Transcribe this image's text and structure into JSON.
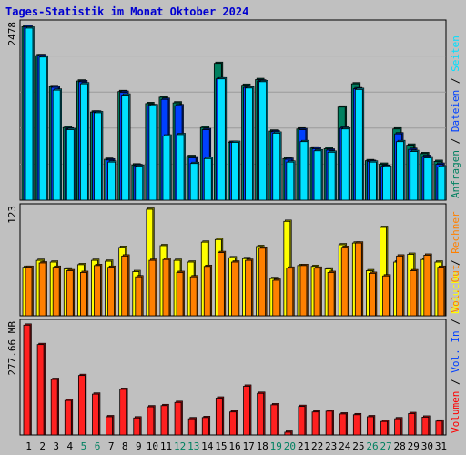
{
  "title": "Tages-Statistik im Monat Oktober 2024",
  "colors": {
    "background": "#c0c0c0",
    "panel_border": "#000000",
    "grid": "#9a9a9a",
    "title": "#0000d0",
    "anfragen": "#008060",
    "dateien": "#0040ff",
    "seiten": "#00e0ff",
    "besuche": "#ffff00",
    "rechner": "#ff8000",
    "vol_in": "#ff2020",
    "vol_out": "#ff8000",
    "vol": "#ff0000",
    "day_weekday": "#000000",
    "day_weekend": "#008060"
  },
  "chart_data": [
    {
      "type": "bar",
      "panel": "top",
      "ymax_label": "2478",
      "ymax": 2478,
      "right_axis_labels": [
        {
          "text": "Anfragen",
          "color": "#008060"
        },
        {
          "text": " / ",
          "color": "#000000"
        },
        {
          "text": "Dateien",
          "color": "#0040ff"
        },
        {
          "text": " / ",
          "color": "#000000"
        },
        {
          "text": "Seiten",
          "color": "#00e0ff"
        }
      ],
      "categories": [
        "1",
        "2",
        "3",
        "4",
        "5",
        "6",
        "7",
        "8",
        "9",
        "10",
        "11",
        "12",
        "13",
        "14",
        "15",
        "16",
        "17",
        "18",
        "19",
        "20",
        "21",
        "22",
        "23",
        "24",
        "25",
        "26",
        "27",
        "28",
        "29",
        "30",
        "31"
      ],
      "series": [
        {
          "name": "Anfragen",
          "color": "#008060",
          "values": [
            2460,
            2050,
            1610,
            1030,
            1690,
            1250,
            580,
            1540,
            500,
            1370,
            1460,
            1380,
            620,
            1030,
            1940,
            820,
            1630,
            1710,
            980,
            590,
            1010,
            740,
            730,
            1320,
            1650,
            560,
            510,
            1010,
            780,
            660,
            550
          ]
        },
        {
          "name": "Dateien",
          "color": "#0040ff",
          "values": [
            2460,
            2050,
            1600,
            1010,
            1680,
            1250,
            570,
            1530,
            490,
            1340,
            1430,
            1340,
            600,
            1000,
            1720,
            820,
            1600,
            1690,
            970,
            580,
            1000,
            730,
            710,
            1020,
            1580,
            550,
            480,
            940,
            720,
            620,
            510
          ]
        },
        {
          "name": "Seiten",
          "color": "#00e0ff",
          "values": [
            2440,
            2030,
            1560,
            1000,
            1650,
            1240,
            540,
            1490,
            480,
            1340,
            910,
            930,
            520,
            590,
            1720,
            820,
            1590,
            1680,
            950,
            540,
            830,
            700,
            680,
            1010,
            1570,
            540,
            470,
            830,
            690,
            600,
            470
          ]
        }
      ]
    },
    {
      "type": "bar",
      "panel": "middle",
      "ymax_label": "123",
      "ymax": 123,
      "right_axis_labels": [
        {
          "text": "Besuche",
          "color": "#ffff00"
        },
        {
          "text": " / ",
          "color": "#000000"
        },
        {
          "text": "Rechner",
          "color": "#ff8000"
        }
      ],
      "categories": [
        "1",
        "2",
        "3",
        "4",
        "5",
        "6",
        "7",
        "8",
        "9",
        "10",
        "11",
        "12",
        "13",
        "14",
        "15",
        "16",
        "17",
        "18",
        "19",
        "20",
        "21",
        "22",
        "23",
        "24",
        "25",
        "26",
        "27",
        "28",
        "29",
        "30",
        "31"
      ],
      "series": [
        {
          "name": "Besuche",
          "color": "#ffff00",
          "values": [
            56,
            64,
            62,
            54,
            59,
            64,
            63,
            79,
            51,
            123,
            81,
            64,
            62,
            85,
            88,
            67,
            66,
            80,
            43,
            109,
            58,
            57,
            54,
            82,
            84,
            52,
            102,
            62,
            71,
            65,
            62
          ]
        },
        {
          "name": "Rechner",
          "color": "#ff8000",
          "values": [
            56,
            61,
            56,
            52,
            50,
            58,
            56,
            69,
            45,
            64,
            65,
            50,
            45,
            57,
            73,
            62,
            64,
            78,
            41,
            55,
            58,
            55,
            50,
            79,
            84,
            49,
            46,
            69,
            52,
            70,
            56
          ]
        }
      ]
    },
    {
      "type": "bar",
      "panel": "bottom",
      "ymax_label": "277.66 MB",
      "ymax": 277.66,
      "right_axis_labels": [
        {
          "text": "Volumen",
          "color": "#ff0000"
        },
        {
          "text": " / ",
          "color": "#000000"
        },
        {
          "text": "Vol. In",
          "color": "#0040ff"
        },
        {
          "text": " / ",
          "color": "#000000"
        },
        {
          "text": "Vol. Out",
          "color": "#ff8000"
        }
      ],
      "categories": [
        "1",
        "2",
        "3",
        "4",
        "5",
        "6",
        "7",
        "8",
        "9",
        "10",
        "11",
        "12",
        "13",
        "14",
        "15",
        "16",
        "17",
        "18",
        "19",
        "20",
        "21",
        "22",
        "23",
        "24",
        "25",
        "26",
        "27",
        "28",
        "29",
        "30",
        "31"
      ],
      "series": [
        {
          "name": "Volumen",
          "color": "#ff2020",
          "values": [
            277,
            228,
            140,
            87,
            150,
            103,
            46,
            115,
            43,
            71,
            74,
            82,
            41,
            44,
            93,
            58,
            123,
            105,
            76,
            7,
            72,
            58,
            60,
            53,
            51,
            46,
            34,
            41,
            54,
            45,
            35
          ]
        }
      ]
    }
  ],
  "x_axis_weekend_days": [
    "5",
    "6",
    "12",
    "13",
    "19",
    "20",
    "26",
    "27"
  ]
}
